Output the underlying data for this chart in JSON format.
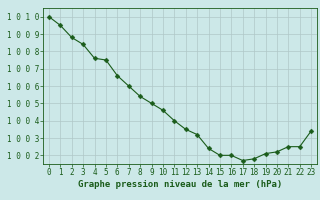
{
  "x": [
    0,
    1,
    2,
    3,
    4,
    5,
    6,
    7,
    8,
    9,
    10,
    11,
    12,
    13,
    14,
    15,
    16,
    17,
    18,
    19,
    20,
    21,
    22,
    23
  ],
  "y": [
    1010.0,
    1009.5,
    1008.8,
    1008.4,
    1007.6,
    1007.5,
    1006.6,
    1006.0,
    1005.4,
    1005.0,
    1004.6,
    1004.0,
    1003.5,
    1003.2,
    1002.4,
    1002.0,
    1002.0,
    1001.7,
    1001.8,
    1002.1,
    1002.2,
    1002.5,
    1002.5,
    1003.4
  ],
  "line_color": "#1a5c1a",
  "marker": "D",
  "marker_size": 2.5,
  "line_width": 0.8,
  "bg_color": "#cce8e8",
  "grid_color": "#b0c8c8",
  "xlabel": "Graphe pression niveau de la mer (hPa)",
  "xlabel_color": "#1a5c1a",
  "xlabel_fontsize": 6.5,
  "tick_label_color": "#1a5c1a",
  "tick_label_fontsize": 5.5,
  "ylim": [
    1001.5,
    1010.5
  ],
  "xlim": [
    -0.5,
    23.5
  ],
  "yticks": [
    1002,
    1003,
    1004,
    1005,
    1006,
    1007,
    1008,
    1009,
    1010
  ],
  "ytick_labels": [
    "1002",
    "1003",
    "1004",
    "1005",
    "1006",
    "1007",
    "1008",
    "1009",
    "1010"
  ],
  "xticks": [
    0,
    1,
    2,
    3,
    4,
    5,
    6,
    7,
    8,
    9,
    10,
    11,
    12,
    13,
    14,
    15,
    16,
    17,
    18,
    19,
    20,
    21,
    22,
    23
  ]
}
